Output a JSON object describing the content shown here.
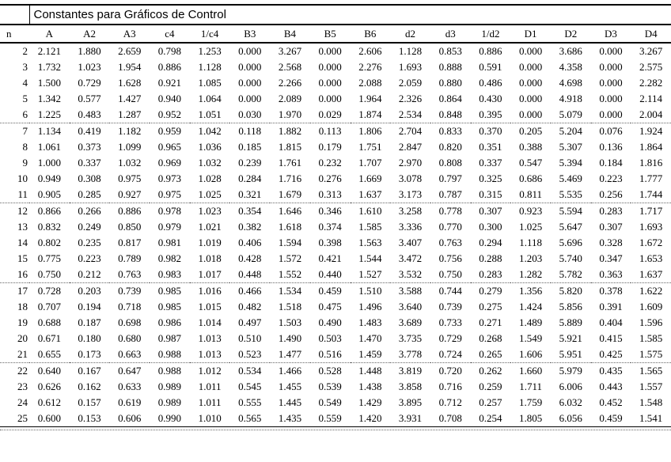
{
  "table": {
    "title": "Constantes para Gráficos de Control",
    "group_size": 5,
    "columns": [
      "n",
      "A",
      "A2",
      "A3",
      "c4",
      "1/c4",
      "B3",
      "B4",
      "B5",
      "B6",
      "d2",
      "d3",
      "1/d2",
      "D1",
      "D2",
      "D3",
      "D4"
    ],
    "rows": [
      [
        "2",
        "2.121",
        "1.880",
        "2.659",
        "0.798",
        "1.253",
        "0.000",
        "3.267",
        "0.000",
        "2.606",
        "1.128",
        "0.853",
        "0.886",
        "0.000",
        "3.686",
        "0.000",
        "3.267"
      ],
      [
        "3",
        "1.732",
        "1.023",
        "1.954",
        "0.886",
        "1.128",
        "0.000",
        "2.568",
        "0.000",
        "2.276",
        "1.693",
        "0.888",
        "0.591",
        "0.000",
        "4.358",
        "0.000",
        "2.575"
      ],
      [
        "4",
        "1.500",
        "0.729",
        "1.628",
        "0.921",
        "1.085",
        "0.000",
        "2.266",
        "0.000",
        "2.088",
        "2.059",
        "0.880",
        "0.486",
        "0.000",
        "4.698",
        "0.000",
        "2.282"
      ],
      [
        "5",
        "1.342",
        "0.577",
        "1.427",
        "0.940",
        "1.064",
        "0.000",
        "2.089",
        "0.000",
        "1.964",
        "2.326",
        "0.864",
        "0.430",
        "0.000",
        "4.918",
        "0.000",
        "2.114"
      ],
      [
        "6",
        "1.225",
        "0.483",
        "1.287",
        "0.952",
        "1.051",
        "0.030",
        "1.970",
        "0.029",
        "1.874",
        "2.534",
        "0.848",
        "0.395",
        "0.000",
        "5.079",
        "0.000",
        "2.004"
      ],
      [
        "7",
        "1.134",
        "0.419",
        "1.182",
        "0.959",
        "1.042",
        "0.118",
        "1.882",
        "0.113",
        "1.806",
        "2.704",
        "0.833",
        "0.370",
        "0.205",
        "5.204",
        "0.076",
        "1.924"
      ],
      [
        "8",
        "1.061",
        "0.373",
        "1.099",
        "0.965",
        "1.036",
        "0.185",
        "1.815",
        "0.179",
        "1.751",
        "2.847",
        "0.820",
        "0.351",
        "0.388",
        "5.307",
        "0.136",
        "1.864"
      ],
      [
        "9",
        "1.000",
        "0.337",
        "1.032",
        "0.969",
        "1.032",
        "0.239",
        "1.761",
        "0.232",
        "1.707",
        "2.970",
        "0.808",
        "0.337",
        "0.547",
        "5.394",
        "0.184",
        "1.816"
      ],
      [
        "10",
        "0.949",
        "0.308",
        "0.975",
        "0.973",
        "1.028",
        "0.284",
        "1.716",
        "0.276",
        "1.669",
        "3.078",
        "0.797",
        "0.325",
        "0.686",
        "5.469",
        "0.223",
        "1.777"
      ],
      [
        "11",
        "0.905",
        "0.285",
        "0.927",
        "0.975",
        "1.025",
        "0.321",
        "1.679",
        "0.313",
        "1.637",
        "3.173",
        "0.787",
        "0.315",
        "0.811",
        "5.535",
        "0.256",
        "1.744"
      ],
      [
        "12",
        "0.866",
        "0.266",
        "0.886",
        "0.978",
        "1.023",
        "0.354",
        "1.646",
        "0.346",
        "1.610",
        "3.258",
        "0.778",
        "0.307",
        "0.923",
        "5.594",
        "0.283",
        "1.717"
      ],
      [
        "13",
        "0.832",
        "0.249",
        "0.850",
        "0.979",
        "1.021",
        "0.382",
        "1.618",
        "0.374",
        "1.585",
        "3.336",
        "0.770",
        "0.300",
        "1.025",
        "5.647",
        "0.307",
        "1.693"
      ],
      [
        "14",
        "0.802",
        "0.235",
        "0.817",
        "0.981",
        "1.019",
        "0.406",
        "1.594",
        "0.398",
        "1.563",
        "3.407",
        "0.763",
        "0.294",
        "1.118",
        "5.696",
        "0.328",
        "1.672"
      ],
      [
        "15",
        "0.775",
        "0.223",
        "0.789",
        "0.982",
        "1.018",
        "0.428",
        "1.572",
        "0.421",
        "1.544",
        "3.472",
        "0.756",
        "0.288",
        "1.203",
        "5.740",
        "0.347",
        "1.653"
      ],
      [
        "16",
        "0.750",
        "0.212",
        "0.763",
        "0.983",
        "1.017",
        "0.448",
        "1.552",
        "0.440",
        "1.527",
        "3.532",
        "0.750",
        "0.283",
        "1.282",
        "5.782",
        "0.363",
        "1.637"
      ],
      [
        "17",
        "0.728",
        "0.203",
        "0.739",
        "0.985",
        "1.016",
        "0.466",
        "1.534",
        "0.459",
        "1.510",
        "3.588",
        "0.744",
        "0.279",
        "1.356",
        "5.820",
        "0.378",
        "1.622"
      ],
      [
        "18",
        "0.707",
        "0.194",
        "0.718",
        "0.985",
        "1.015",
        "0.482",
        "1.518",
        "0.475",
        "1.496",
        "3.640",
        "0.739",
        "0.275",
        "1.424",
        "5.856",
        "0.391",
        "1.609"
      ],
      [
        "19",
        "0.688",
        "0.187",
        "0.698",
        "0.986",
        "1.014",
        "0.497",
        "1.503",
        "0.490",
        "1.483",
        "3.689",
        "0.733",
        "0.271",
        "1.489",
        "5.889",
        "0.404",
        "1.596"
      ],
      [
        "20",
        "0.671",
        "0.180",
        "0.680",
        "0.987",
        "1.013",
        "0.510",
        "1.490",
        "0.503",
        "1.470",
        "3.735",
        "0.729",
        "0.268",
        "1.549",
        "5.921",
        "0.415",
        "1.585"
      ],
      [
        "21",
        "0.655",
        "0.173",
        "0.663",
        "0.988",
        "1.013",
        "0.523",
        "1.477",
        "0.516",
        "1.459",
        "3.778",
        "0.724",
        "0.265",
        "1.606",
        "5.951",
        "0.425",
        "1.575"
      ],
      [
        "22",
        "0.640",
        "0.167",
        "0.647",
        "0.988",
        "1.012",
        "0.534",
        "1.466",
        "0.528",
        "1.448",
        "3.819",
        "0.720",
        "0.262",
        "1.660",
        "5.979",
        "0.435",
        "1.565"
      ],
      [
        "23",
        "0.626",
        "0.162",
        "0.633",
        "0.989",
        "1.011",
        "0.545",
        "1.455",
        "0.539",
        "1.438",
        "3.858",
        "0.716",
        "0.259",
        "1.711",
        "6.006",
        "0.443",
        "1.557"
      ],
      [
        "24",
        "0.612",
        "0.157",
        "0.619",
        "0.989",
        "1.011",
        "0.555",
        "1.445",
        "0.549",
        "1.429",
        "3.895",
        "0.712",
        "0.257",
        "1.759",
        "6.032",
        "0.452",
        "1.548"
      ],
      [
        "25",
        "0.600",
        "0.153",
        "0.606",
        "0.990",
        "1.010",
        "0.565",
        "1.435",
        "0.559",
        "1.420",
        "3.931",
        "0.708",
        "0.254",
        "1.805",
        "6.056",
        "0.459",
        "1.541"
      ]
    ],
    "colors": {
      "background": "#ffffff",
      "text": "#000000",
      "solid_line": "#000000",
      "dotted_line": "#666666"
    }
  }
}
